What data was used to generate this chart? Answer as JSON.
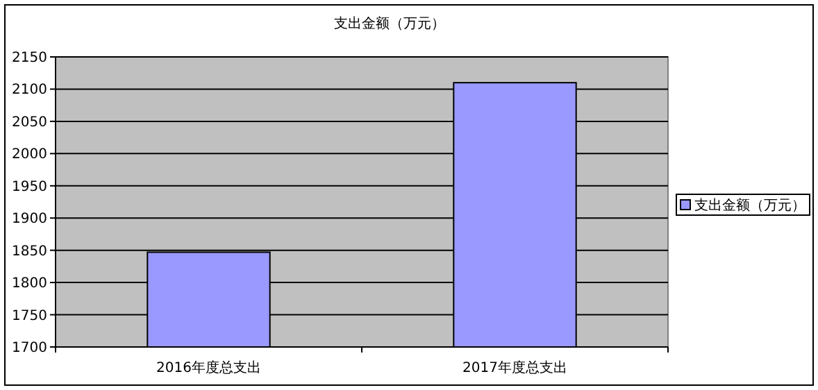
{
  "chart_data": {
    "type": "bar",
    "title": "支出金额（万元）",
    "categories": [
      "2016年度总支出",
      "2017年度总支出"
    ],
    "series": [
      {
        "name": "支出金额（万元）",
        "color": "#9999ff",
        "values": [
          1847,
          2110
        ]
      }
    ],
    "ylim": [
      1700,
      2150
    ],
    "yticks": [
      1700,
      1750,
      1800,
      1850,
      1900,
      1950,
      2000,
      2050,
      2100,
      2150
    ],
    "grid": "y",
    "legend": "right"
  }
}
